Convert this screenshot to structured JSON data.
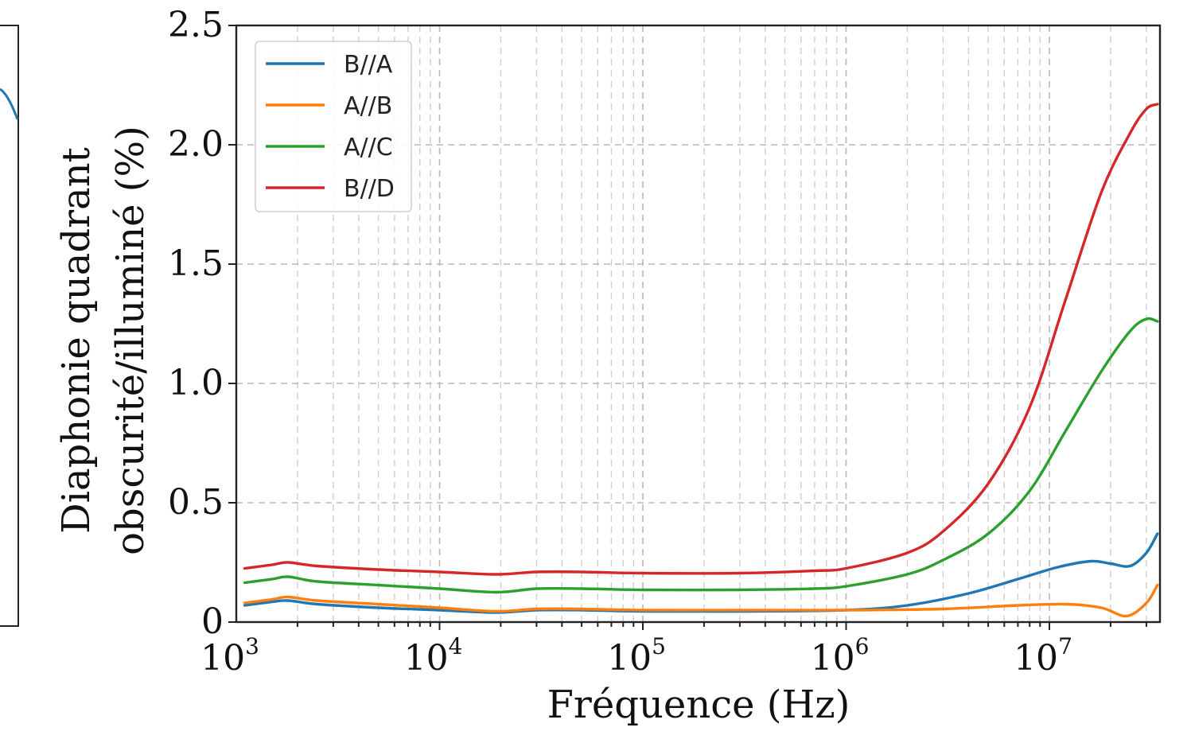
{
  "chart_data": {
    "type": "line",
    "title": "",
    "xlabel": "Fréquence (Hz)",
    "ylabel_lines": [
      "Diaphonie quadrant",
      "obscurité/illuminé (%)"
    ],
    "x_scale": "log",
    "xlim": [
      1000,
      35000000
    ],
    "ylim": [
      0,
      2.5
    ],
    "grid": true,
    "legend_position": "top-left",
    "x_ticks": [
      {
        "value": 1000,
        "base": "10",
        "exp": "3"
      },
      {
        "value": 10000,
        "base": "10",
        "exp": "4"
      },
      {
        "value": 100000,
        "base": "10",
        "exp": "5"
      },
      {
        "value": 1000000,
        "base": "10",
        "exp": "6"
      },
      {
        "value": 10000000,
        "base": "10",
        "exp": "7"
      }
    ],
    "y_ticks": [
      {
        "value": 0,
        "label": "0"
      },
      {
        "value": 0.5,
        "label": "0.5"
      },
      {
        "value": 1.0,
        "label": "1.0"
      },
      {
        "value": 1.5,
        "label": "1.5"
      },
      {
        "value": 2.0,
        "label": "2.0"
      },
      {
        "value": 2.5,
        "label": "2.5"
      }
    ],
    "series": [
      {
        "name": "B//A",
        "color": "#1f77b4",
        "points": [
          [
            1100,
            0.07
          ],
          [
            1500,
            0.085
          ],
          [
            1800,
            0.09
          ],
          [
            2500,
            0.075
          ],
          [
            5000,
            0.06
          ],
          [
            10000,
            0.05
          ],
          [
            19000,
            0.04
          ],
          [
            30000,
            0.05
          ],
          [
            50000,
            0.05
          ],
          [
            100000,
            0.045
          ],
          [
            300000,
            0.045
          ],
          [
            1000000,
            0.05
          ],
          [
            2000000,
            0.07
          ],
          [
            4000000,
            0.12
          ],
          [
            7000000,
            0.18
          ],
          [
            11000000,
            0.23
          ],
          [
            16000000,
            0.255
          ],
          [
            20000000,
            0.245
          ],
          [
            25000000,
            0.235
          ],
          [
            30000000,
            0.29
          ],
          [
            34000000,
            0.37
          ]
        ]
      },
      {
        "name": "A//B",
        "color": "#ff7f0e",
        "points": [
          [
            1100,
            0.08
          ],
          [
            1500,
            0.095
          ],
          [
            1800,
            0.105
          ],
          [
            2500,
            0.09
          ],
          [
            5000,
            0.075
          ],
          [
            10000,
            0.06
          ],
          [
            19000,
            0.045
          ],
          [
            30000,
            0.055
          ],
          [
            50000,
            0.055
          ],
          [
            100000,
            0.05
          ],
          [
            300000,
            0.05
          ],
          [
            1000000,
            0.05
          ],
          [
            3000000,
            0.055
          ],
          [
            7000000,
            0.07
          ],
          [
            12000000,
            0.075
          ],
          [
            18000000,
            0.06
          ],
          [
            24000000,
            0.025
          ],
          [
            30000000,
            0.08
          ],
          [
            34000000,
            0.155
          ]
        ]
      },
      {
        "name": "A//C",
        "color": "#2ca02c",
        "points": [
          [
            1100,
            0.165
          ],
          [
            1500,
            0.18
          ],
          [
            1800,
            0.19
          ],
          [
            2500,
            0.17
          ],
          [
            5000,
            0.155
          ],
          [
            10000,
            0.14
          ],
          [
            19000,
            0.125
          ],
          [
            30000,
            0.14
          ],
          [
            50000,
            0.14
          ],
          [
            100000,
            0.135
          ],
          [
            300000,
            0.135
          ],
          [
            700000,
            0.14
          ],
          [
            1000000,
            0.15
          ],
          [
            2000000,
            0.2
          ],
          [
            3000000,
            0.26
          ],
          [
            5000000,
            0.37
          ],
          [
            8000000,
            0.55
          ],
          [
            12000000,
            0.8
          ],
          [
            18000000,
            1.05
          ],
          [
            25000000,
            1.22
          ],
          [
            30000000,
            1.27
          ],
          [
            34000000,
            1.26
          ]
        ]
      },
      {
        "name": "B//D",
        "color": "#d62728",
        "points": [
          [
            1100,
            0.225
          ],
          [
            1500,
            0.24
          ],
          [
            1800,
            0.25
          ],
          [
            2500,
            0.235
          ],
          [
            5000,
            0.22
          ],
          [
            10000,
            0.21
          ],
          [
            19000,
            0.2
          ],
          [
            30000,
            0.21
          ],
          [
            50000,
            0.21
          ],
          [
            100000,
            0.205
          ],
          [
            300000,
            0.205
          ],
          [
            700000,
            0.215
          ],
          [
            1000000,
            0.225
          ],
          [
            2000000,
            0.29
          ],
          [
            3000000,
            0.38
          ],
          [
            5000000,
            0.58
          ],
          [
            8000000,
            0.9
          ],
          [
            12000000,
            1.35
          ],
          [
            18000000,
            1.8
          ],
          [
            25000000,
            2.05
          ],
          [
            30000000,
            2.15
          ],
          [
            34000000,
            2.17
          ]
        ]
      }
    ]
  }
}
